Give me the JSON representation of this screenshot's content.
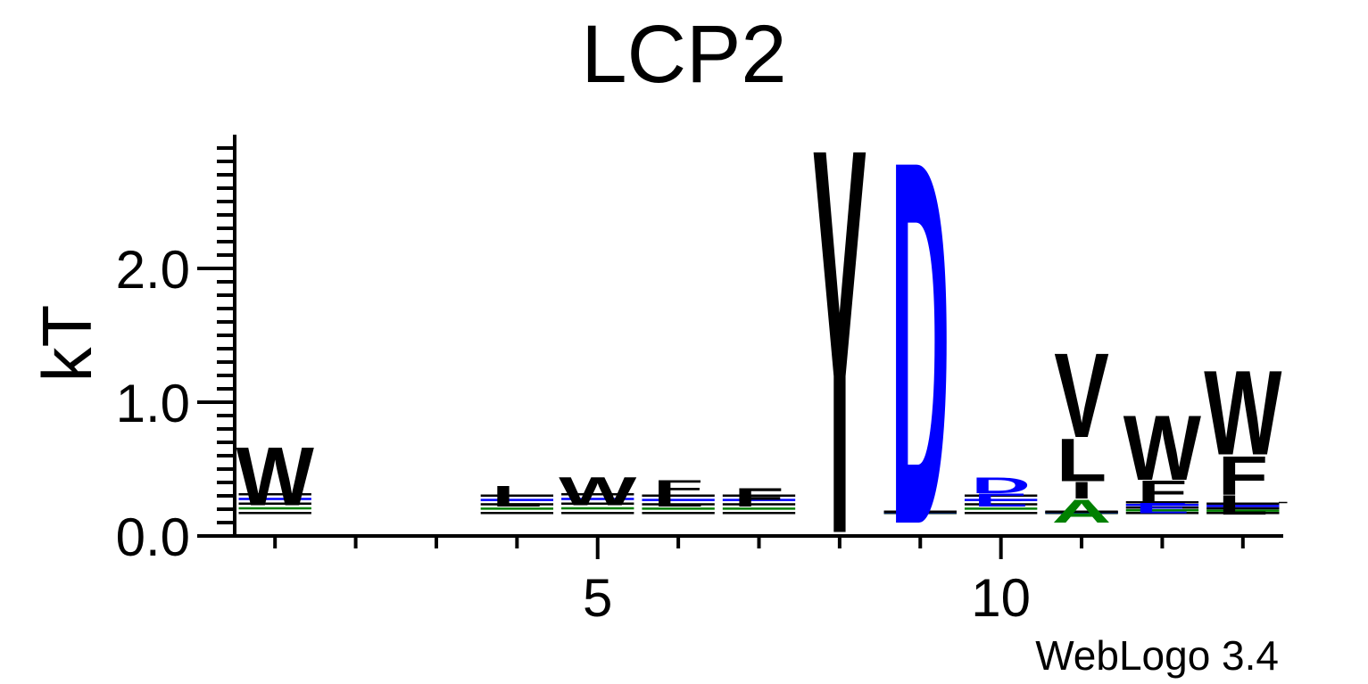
{
  "chart_data": {
    "type": "sequence-logo",
    "title": "LCP2",
    "ylabel": "kT",
    "xlabel": "",
    "ylim": [
      0,
      3.0
    ],
    "xlim": [
      1,
      13
    ],
    "x_ticks": [
      5,
      10
    ],
    "y_ticks": [
      "0.0",
      "1.0",
      "2.0"
    ],
    "credit": "WebLogo 3.4",
    "colors": {
      "default": "#000000",
      "acidic": "#0000ff",
      "basic": "#0000ff",
      "small": "#008000"
    },
    "positions": [
      {
        "pos": 1,
        "stack": [
          {
            "letter": "W",
            "height": 0.45,
            "color": "#000000"
          }
        ],
        "baseline_band": 0.23
      },
      {
        "pos": 2,
        "stack": [],
        "baseline_band": 0
      },
      {
        "pos": 3,
        "stack": [],
        "baseline_band": 0
      },
      {
        "pos": 4,
        "stack": [
          {
            "letter": "L",
            "height": 0.16,
            "color": "#000000"
          }
        ],
        "baseline_band": 0.22
      },
      {
        "pos": 5,
        "stack": [
          {
            "letter": "W",
            "height": 0.22,
            "color": "#000000"
          }
        ],
        "baseline_band": 0.23
      },
      {
        "pos": 6,
        "stack": [
          {
            "letter": "F",
            "height": 0.12,
            "color": "#000000"
          },
          {
            "letter": "L",
            "height": 0.08,
            "color": "#000000"
          }
        ],
        "baseline_band": 0.22
      },
      {
        "pos": 7,
        "stack": [
          {
            "letter": "F",
            "height": 0.14,
            "color": "#000000"
          }
        ],
        "baseline_band": 0.22
      },
      {
        "pos": 8,
        "stack": [
          {
            "letter": "Y",
            "height": 2.97,
            "color": "#000000"
          }
        ],
        "baseline_band": 0.03
      },
      {
        "pos": 9,
        "stack": [
          {
            "letter": "D",
            "height": 2.8,
            "color": "#0000ff"
          }
        ],
        "baseline_band": 0.1
      },
      {
        "pos": 10,
        "stack": [
          {
            "letter": "D",
            "height": 0.12,
            "color": "#0000ff"
          },
          {
            "letter": "E",
            "height": 0.1,
            "color": "#0000ff"
          }
        ],
        "baseline_band": 0.22
      },
      {
        "pos": 11,
        "stack": [
          {
            "letter": "V",
            "height": 0.65,
            "color": "#000000"
          },
          {
            "letter": "L",
            "height": 0.33,
            "color": "#000000"
          },
          {
            "letter": "I",
            "height": 0.13,
            "color": "#000000"
          },
          {
            "letter": "A",
            "height": 0.18,
            "color": "#008000"
          }
        ],
        "baseline_band": 0.1
      },
      {
        "pos": 12,
        "stack": [
          {
            "letter": "W",
            "height": 0.5,
            "color": "#000000"
          },
          {
            "letter": "F",
            "height": 0.17,
            "color": "#000000"
          },
          {
            "letter": "E",
            "height": 0.08,
            "color": "#0000ff"
          }
        ],
        "baseline_band": 0.17
      },
      {
        "pos": 13,
        "stack": [
          {
            "letter": "W",
            "height": 0.65,
            "color": "#000000"
          },
          {
            "letter": "F",
            "height": 0.3,
            "color": "#000000"
          },
          {
            "letter": "L",
            "height": 0.15,
            "color": "#000000"
          }
        ],
        "baseline_band": 0.16
      },
      {
        "pos": 14,
        "stack": [],
        "baseline_band": 0.25
      }
    ]
  }
}
